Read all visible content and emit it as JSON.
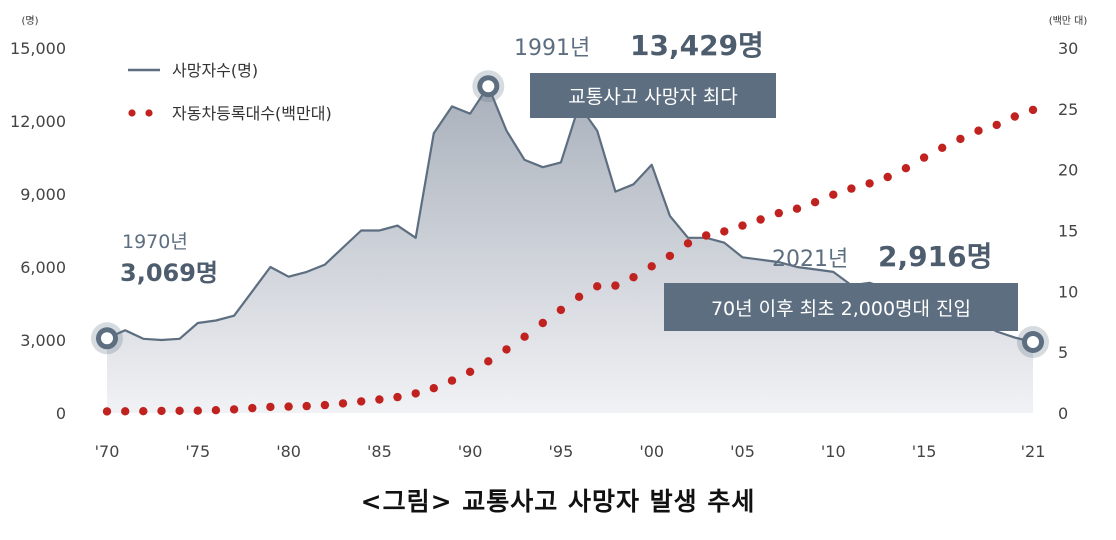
{
  "caption": "<그림> 교통사고 사망자 발생 추세",
  "colors": {
    "deaths_line": "#5d6e80",
    "deaths_area_top": "#a9b0bb",
    "deaths_area_bottom": "#f1f2f5",
    "vehicles_dots": "#c0221f",
    "callout_box": "#5d6e80",
    "marker": "#5d6e80"
  },
  "chart_data": {
    "type": "line",
    "x": [
      1970,
      1971,
      1972,
      1973,
      1974,
      1975,
      1976,
      1977,
      1978,
      1979,
      1980,
      1981,
      1982,
      1983,
      1984,
      1985,
      1986,
      1987,
      1988,
      1989,
      1990,
      1991,
      1992,
      1993,
      1994,
      1995,
      1996,
      1997,
      1998,
      1999,
      2000,
      2001,
      2002,
      2003,
      2004,
      2005,
      2006,
      2007,
      2008,
      2009,
      2010,
      2011,
      2012,
      2013,
      2014,
      2015,
      2016,
      2017,
      2018,
      2019,
      2020,
      2021
    ],
    "series": [
      {
        "name": "사망자수(명)",
        "axis": "left",
        "style": "line-area",
        "values": [
          3069,
          3400,
          3050,
          3000,
          3050,
          3700,
          3800,
          4000,
          5000,
          6000,
          5600,
          5800,
          6100,
          6800,
          7500,
          7500,
          7700,
          7200,
          11500,
          12600,
          12300,
          13429,
          11600,
          10400,
          10100,
          10300,
          12650,
          11600,
          9100,
          9400,
          10200,
          8100,
          7200,
          7200,
          7000,
          6400,
          6300,
          6200,
          6000,
          5900,
          5800,
          5250,
          5350,
          5100,
          4800,
          4600,
          4300,
          4200,
          3800,
          3350,
          3100,
          2916
        ]
      },
      {
        "name": "자동차등록대수(백만대)",
        "axis": "right",
        "style": "dots",
        "values": [
          0.13,
          0.14,
          0.15,
          0.17,
          0.18,
          0.19,
          0.23,
          0.3,
          0.4,
          0.5,
          0.53,
          0.57,
          0.65,
          0.79,
          0.95,
          1.11,
          1.31,
          1.61,
          2.04,
          2.66,
          3.39,
          4.25,
          5.23,
          6.27,
          7.4,
          8.47,
          9.55,
          10.41,
          10.47,
          11.16,
          12.06,
          12.91,
          13.95,
          14.59,
          14.93,
          15.4,
          15.9,
          16.43,
          16.79,
          17.33,
          17.94,
          18.44,
          18.87,
          19.4,
          20.12,
          20.99,
          21.8,
          22.53,
          23.2,
          23.68,
          24.37,
          24.91
        ]
      }
    ],
    "y_left": {
      "unit": "(명)",
      "range": [
        0,
        15000
      ],
      "ticks": [
        "0",
        "3,000",
        "6,000",
        "9,000",
        "12,000",
        "15,000"
      ],
      "tick_values": [
        0,
        3000,
        6000,
        9000,
        12000,
        15000
      ]
    },
    "y_right": {
      "unit": "(백만 대)",
      "range": [
        0,
        30
      ],
      "ticks": [
        "0",
        "5",
        "10",
        "15",
        "20",
        "25",
        "30"
      ],
      "tick_values": [
        0,
        5,
        10,
        15,
        20,
        25,
        30
      ]
    },
    "x_ticks": [
      {
        "value": 1970,
        "label": "'70"
      },
      {
        "value": 1975,
        "label": "'75"
      },
      {
        "value": 1980,
        "label": "'80"
      },
      {
        "value": 1985,
        "label": "'85"
      },
      {
        "value": 1990,
        "label": "'90"
      },
      {
        "value": 1995,
        "label": "'95"
      },
      {
        "value": 2000,
        "label": "'00"
      },
      {
        "value": 2005,
        "label": "'05"
      },
      {
        "value": 2010,
        "label": "'10"
      },
      {
        "value": 2015,
        "label": "'15"
      },
      {
        "value": 2021,
        "label": "'21"
      }
    ],
    "legend": {
      "placement": "top-left",
      "entries": [
        "사망자수(명)",
        "자동차등록대수(백만대)"
      ]
    },
    "grid": false,
    "annotations": {
      "start": {
        "year_text": "1970년",
        "value_text": "3,069명"
      },
      "peak": {
        "year_text": "1991년",
        "value_text": "13,429명",
        "box_text": "교통사고 사망자 최다"
      },
      "end": {
        "year_text": "2021년",
        "value_text": "2,916명",
        "box_text": "70년 이후 최초 2,000명대 진입"
      }
    }
  }
}
